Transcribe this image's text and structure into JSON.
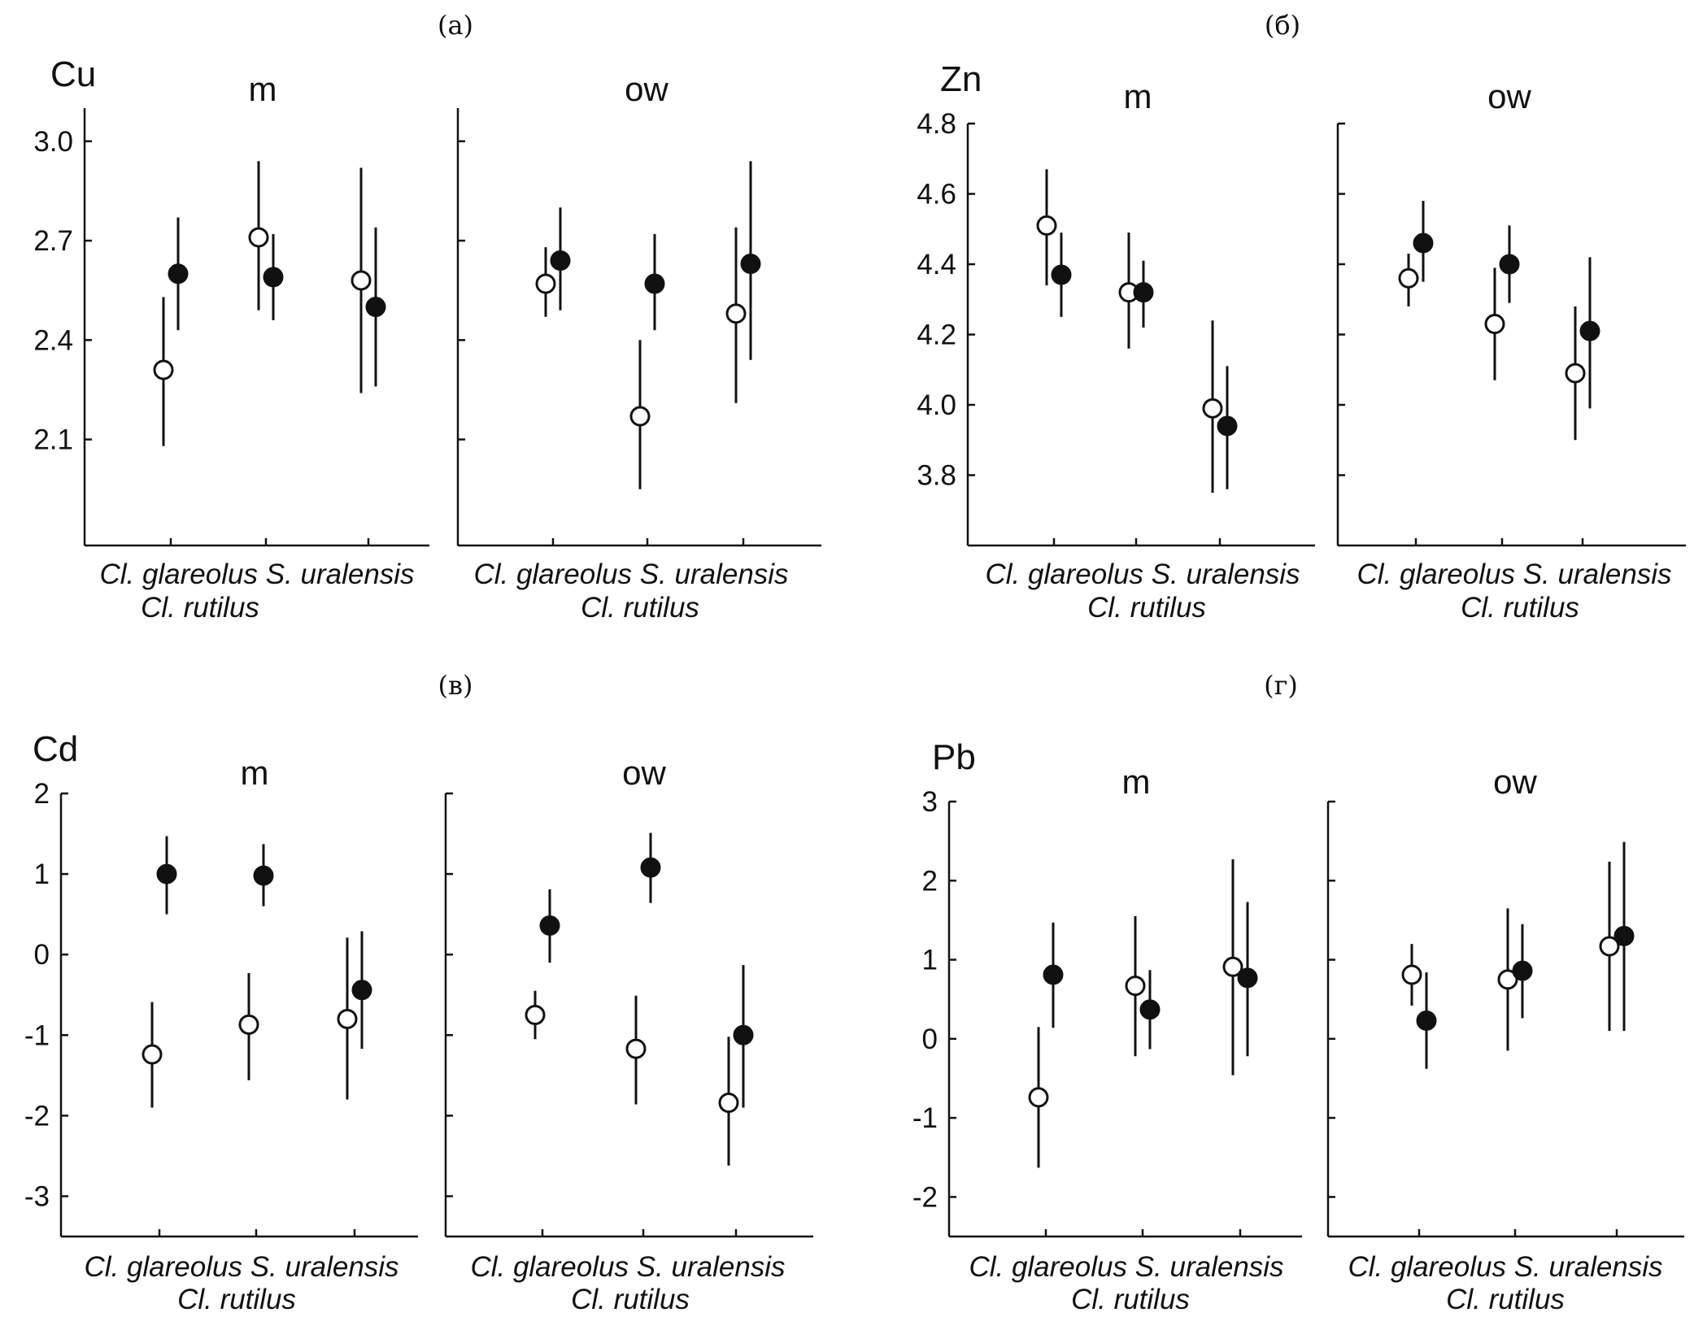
{
  "chart_data": [
    {
      "type": "scatter",
      "panel": "(а)",
      "element": "Cu",
      "ylim": [
        1.78,
        3.1
      ],
      "yticks": [
        "3.0",
        "2.7",
        "2.4",
        "2.1"
      ],
      "ytick_values": [
        3.0,
        2.7,
        2.4,
        2.1
      ],
      "groups": [
        {
          "title": "m",
          "category_label_top": "Cl. glareolus S. uralensis",
          "category_label_bottom": "Cl. rutilus",
          "series": [
            {
              "name": "open",
              "values": [
                2.31,
                2.71,
                2.58
              ],
              "lower": [
                2.08,
                2.49,
                2.24
              ],
              "upper": [
                2.53,
                2.94,
                2.92
              ]
            },
            {
              "name": "filled",
              "values": [
                2.6,
                2.59,
                2.5
              ],
              "lower": [
                2.43,
                2.46,
                2.26
              ],
              "upper": [
                2.77,
                2.72,
                2.74
              ]
            }
          ]
        },
        {
          "title": "ow",
          "category_label_top": "Cl. glareolus S. uralensis",
          "category_label_bottom": "Cl. rutilus",
          "series": [
            {
              "name": "open",
              "values": [
                2.57,
                2.17,
                2.48
              ],
              "lower": [
                2.47,
                1.95,
                2.21
              ],
              "upper": [
                2.68,
                2.4,
                2.74
              ]
            },
            {
              "name": "filled",
              "values": [
                2.64,
                2.57,
                2.63
              ],
              "lower": [
                2.49,
                2.43,
                2.34
              ],
              "upper": [
                2.8,
                2.72,
                2.94
              ]
            }
          ]
        }
      ]
    },
    {
      "type": "scatter",
      "panel": "(б)",
      "element": "Zn",
      "ylim": [
        3.6,
        4.8
      ],
      "yticks": [
        "4.8",
        "4.6",
        "4.4",
        "4.2",
        "4.0",
        "3.8"
      ],
      "ytick_values": [
        4.8,
        4.6,
        4.4,
        4.2,
        4.0,
        3.8
      ],
      "groups": [
        {
          "title": "m",
          "category_label_top": "Cl. glareolus S. uralensis",
          "category_label_bottom": "Cl. rutilus",
          "series": [
            {
              "name": "open",
              "values": [
                4.51,
                4.32,
                3.99
              ],
              "lower": [
                4.34,
                4.16,
                3.75
              ],
              "upper": [
                4.67,
                4.49,
                4.24
              ]
            },
            {
              "name": "filled",
              "values": [
                4.37,
                4.32,
                3.94
              ],
              "lower": [
                4.25,
                4.22,
                3.76
              ],
              "upper": [
                4.49,
                4.41,
                4.11
              ]
            }
          ]
        },
        {
          "title": "ow",
          "category_label_top": "Cl. glareolus S. uralensis",
          "category_label_bottom": "Cl. rutilus",
          "series": [
            {
              "name": "open",
              "values": [
                4.36,
                4.23,
                4.09
              ],
              "lower": [
                4.28,
                4.07,
                3.9
              ],
              "upper": [
                4.43,
                4.39,
                4.28
              ]
            },
            {
              "name": "filled",
              "values": [
                4.46,
                4.4,
                4.21
              ],
              "lower": [
                4.35,
                4.29,
                3.99
              ],
              "upper": [
                4.58,
                4.51,
                4.42
              ]
            }
          ]
        }
      ]
    },
    {
      "type": "scatter",
      "panel": "(в)",
      "element": "Cd",
      "ylim": [
        -3.5,
        2
      ],
      "yticks": [
        "2",
        "1",
        "0",
        "-1",
        "-2",
        "-3"
      ],
      "ytick_values": [
        2,
        1,
        0,
        -1,
        -2,
        -3
      ],
      "groups": [
        {
          "title": "m",
          "category_label_top": "Cl. glareolus S. uralensis",
          "category_label_bottom": "Cl. rutilus",
          "series": [
            {
              "name": "open",
              "values": [
                -1.24,
                -0.87,
                -0.8
              ],
              "lower": [
                -1.9,
                -1.56,
                -1.8
              ],
              "upper": [
                -0.59,
                -0.23,
                0.21
              ]
            },
            {
              "name": "filled",
              "values": [
                1.0,
                0.98,
                -0.44
              ],
              "lower": [
                0.5,
                0.6,
                -1.17
              ],
              "upper": [
                1.47,
                1.37,
                0.29
              ]
            }
          ]
        },
        {
          "title": "ow",
          "category_label_top": "Cl. glareolus S. uralensis",
          "category_label_bottom": "Cl. rutilus",
          "series": [
            {
              "name": "open",
              "values": [
                -0.75,
                -1.17,
                -1.84
              ],
              "lower": [
                -1.05,
                -1.86,
                -2.62
              ],
              "upper": [
                -0.45,
                -0.51,
                -1.02
              ]
            },
            {
              "name": "filled",
              "values": [
                0.36,
                1.08,
                -1.0
              ],
              "lower": [
                -0.1,
                0.64,
                -1.9
              ],
              "upper": [
                0.81,
                1.51,
                -0.13
              ]
            }
          ]
        }
      ]
    },
    {
      "type": "scatter",
      "panel": "(г)",
      "element": "Pb",
      "ylim": [
        -2.5,
        3
      ],
      "yticks": [
        "3",
        "2",
        "1",
        "0",
        "-1",
        "-2"
      ],
      "ytick_values": [
        3,
        2,
        1,
        0,
        -1,
        -2
      ],
      "groups": [
        {
          "title": "m",
          "category_label_top": "Cl. glareolus S. uralensis",
          "category_label_bottom": "Cl. rutilus",
          "series": [
            {
              "name": "open",
              "values": [
                -0.74,
                0.67,
                0.91
              ],
              "lower": [
                -1.63,
                -0.22,
                -0.46
              ],
              "upper": [
                0.15,
                1.55,
                2.27
              ]
            },
            {
              "name": "filled",
              "values": [
                0.81,
                0.37,
                0.77
              ],
              "lower": [
                0.14,
                -0.13,
                -0.22
              ],
              "upper": [
                1.47,
                0.87,
                1.73
              ]
            }
          ]
        },
        {
          "title": "ow",
          "category_label_top": "Cl. glareolus S. uralensis",
          "category_label_bottom": "Cl. rutilus",
          "series": [
            {
              "name": "open",
              "values": [
                0.81,
                0.75,
                1.17
              ],
              "lower": [
                0.42,
                -0.15,
                0.1
              ],
              "upper": [
                1.2,
                1.65,
                2.24
              ]
            },
            {
              "name": "filled",
              "values": [
                0.23,
                0.86,
                1.3
              ],
              "lower": [
                -0.38,
                0.26,
                0.1
              ],
              "upper": [
                0.84,
                1.45,
                2.49
              ]
            }
          ]
        }
      ]
    }
  ]
}
